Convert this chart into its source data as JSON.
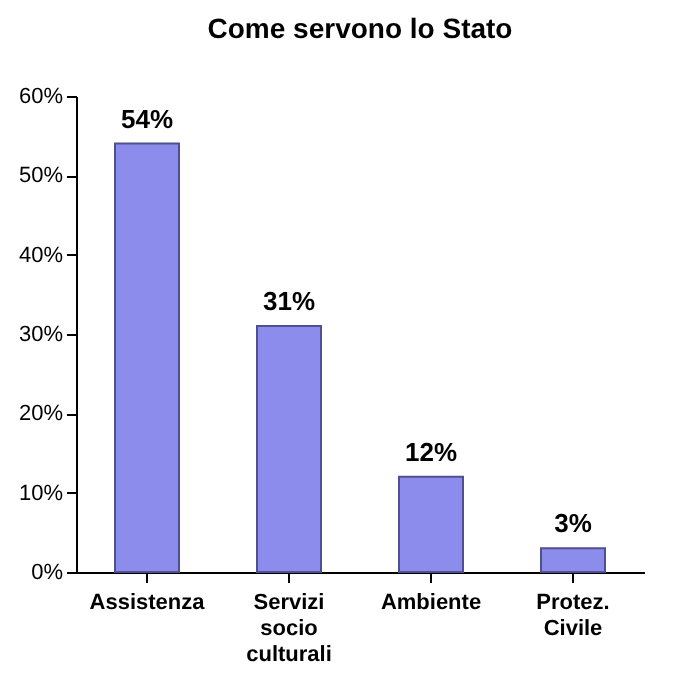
{
  "chart_data": {
    "type": "bar",
    "title": "Come servono lo Stato",
    "categories": [
      "Assistenza",
      "Servizi socio culturali",
      "Ambiente",
      "Protez. Civile"
    ],
    "values": [
      54,
      31,
      12,
      3
    ],
    "value_labels": [
      "54%",
      "31%",
      "12%",
      "3%"
    ],
    "color": "#8c8cec",
    "ylim": [
      0,
      60
    ],
    "yticks": [
      {
        "value": 0,
        "label": "0%"
      },
      {
        "value": 10,
        "label": "10%"
      },
      {
        "value": 20,
        "label": "20%"
      },
      {
        "value": 30,
        "label": "30%"
      },
      {
        "value": 40,
        "label": "40%"
      },
      {
        "value": 50,
        "label": "50%"
      },
      {
        "value": 60,
        "label": "60%"
      }
    ],
    "grid": false
  }
}
